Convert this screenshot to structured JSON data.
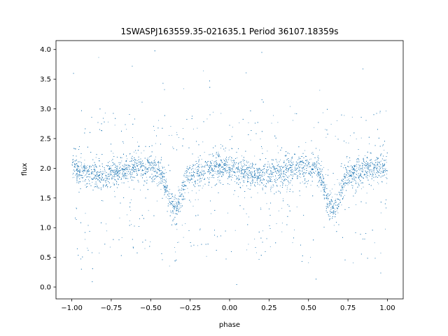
{
  "chart_data": {
    "type": "scatter",
    "title": "1SWASPJ163559.35-021635.1 Period 36107.18359s",
    "xlabel": "phase",
    "ylabel": "flux",
    "xlim": [
      -1.1,
      1.1
    ],
    "ylim": [
      -0.2,
      4.15
    ],
    "xticks": [
      -1.0,
      -0.75,
      -0.5,
      -0.25,
      0.0,
      0.25,
      0.5,
      0.75,
      1.0
    ],
    "xtick_labels": [
      "−1.00",
      "−0.75",
      "−0.50",
      "−0.25",
      "0.00",
      "0.25",
      "0.50",
      "0.75",
      "1.00"
    ],
    "yticks": [
      0.0,
      0.5,
      1.0,
      1.5,
      2.0,
      2.5,
      3.0,
      3.5,
      4.0
    ],
    "ytick_labels": [
      "0.0",
      "0.5",
      "1.0",
      "1.5",
      "2.0",
      "2.5",
      "3.0",
      "3.5",
      "4.0"
    ],
    "grid": false,
    "legend": false,
    "marker_color": "#1f77b4",
    "series": [
      {
        "x_range": [
          -1.0,
          1.0
        ],
        "description_points": 9000,
        "baseline_flux": 1.95,
        "out_of_eclipse_peaks": [
          {
            "phase": -0.55,
            "flux": 2.02
          },
          {
            "phase": -0.05,
            "flux": 2.05
          },
          {
            "phase": 0.45,
            "flux": 2.02
          },
          {
            "phase": 0.95,
            "flux": 2.05
          }
        ],
        "eclipses": [
          {
            "phase": -0.35,
            "min_flux": 1.38,
            "half_width": 0.1
          },
          {
            "phase": 0.65,
            "min_flux": 1.38,
            "half_width": 0.1
          }
        ],
        "core_scatter": 0.1,
        "outlier_range": [
          0.0,
          4.0
        ]
      }
    ]
  }
}
